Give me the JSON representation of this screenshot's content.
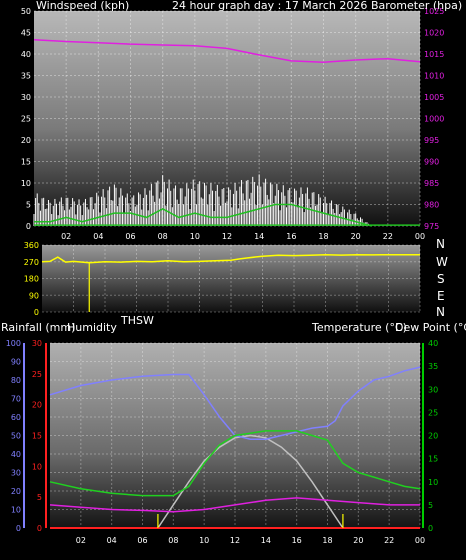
{
  "header": {
    "left_label": "Windspeed (kph)",
    "center_label": "24 hour graph day : 17 March 2026",
    "right_label": "Barometer (hpa)"
  },
  "labels": {
    "thsw": "THSW",
    "rainfall": "Rainfall (mm)",
    "humidity": "Humidity",
    "temperature": "Temperature (°C)",
    "dewpoint": "Dew Point (°C)"
  },
  "compass": [
    "N",
    "W",
    "S",
    "E",
    "N"
  ],
  "colors": {
    "background": "#000000",
    "barometer": "#e020e0",
    "wind_gust": "#ffffff",
    "wind_avg": "#20c020",
    "direction": "#ffff00",
    "humidity": "#8080ff",
    "temperature": "#20d020",
    "dewpoint": "#e020e0",
    "solar": "#c0c0c0",
    "rain_axis": "#ff2020",
    "temp_axis": "#00cc00"
  },
  "chart_data": [
    {
      "type": "line",
      "name_hint": "wind-barometer",
      "x_ticks": [
        "02",
        "04",
        "06",
        "08",
        "10",
        "12",
        "14",
        "16",
        "18",
        "20",
        "22",
        "00"
      ],
      "y_left_ticks": [
        "0",
        "5",
        "10",
        "15",
        "20",
        "25",
        "30",
        "35",
        "40",
        "45",
        "50"
      ],
      "y_right_ticks": [
        "975",
        "980",
        "985",
        "990",
        "995",
        "1000",
        "1005",
        "1010",
        "1015",
        "1020",
        "1025"
      ],
      "ylim_left": [
        0,
        50
      ],
      "ylim_right": [
        975,
        1025
      ],
      "xlim": [
        0,
        24
      ],
      "barometer": {
        "x": [
          0,
          2,
          4,
          6,
          8,
          10,
          12,
          14,
          16,
          18,
          20,
          22,
          24
        ],
        "values": [
          1018.3,
          1017.9,
          1017.6,
          1017.3,
          1017.1,
          1016.9,
          1016.3,
          1014.8,
          1013.4,
          1013.1,
          1013.6,
          1013.9,
          1013.2
        ]
      },
      "wind_gust": {
        "x": [
          0,
          1,
          2,
          3,
          4,
          5,
          6,
          7,
          8,
          9,
          10,
          11,
          12,
          13,
          14,
          15,
          16,
          17,
          18,
          19,
          20,
          21
        ],
        "values": [
          8,
          6,
          7,
          6,
          8,
          10,
          7,
          9,
          12,
          9,
          11,
          10,
          9,
          11,
          12,
          10,
          9,
          9,
          7,
          5,
          3,
          0
        ]
      },
      "wind_avg": {
        "x": [
          0,
          1,
          2,
          3,
          4,
          5,
          6,
          7,
          8,
          9,
          10,
          11,
          12,
          13,
          14,
          15,
          16,
          17,
          18,
          19,
          20,
          21
        ],
        "values": [
          1,
          1,
          2,
          1,
          2,
          3,
          3,
          2,
          4,
          2,
          3,
          2,
          2,
          3,
          4,
          5,
          5,
          4,
          3,
          2,
          1,
          0
        ]
      }
    },
    {
      "type": "scatter",
      "name_hint": "wind-direction",
      "y_ticks": [
        "0",
        "90",
        "180",
        "270",
        "360"
      ],
      "ylim": [
        0,
        360
      ],
      "xlim": [
        0,
        24
      ],
      "direction": {
        "x": [
          0,
          0.5,
          1,
          1.5,
          2,
          3,
          4,
          5,
          6,
          7,
          8,
          9,
          10,
          11,
          12,
          12.5,
          13,
          14,
          15,
          16,
          17,
          18,
          19,
          20,
          21,
          22,
          23,
          24
        ],
        "values": [
          270,
          272,
          295,
          268,
          272,
          265,
          270,
          268,
          272,
          270,
          275,
          270,
          272,
          275,
          278,
          285,
          290,
          300,
          305,
          303,
          305,
          308,
          306,
          308,
          307,
          308,
          308,
          308
        ]
      },
      "thsw_marker_x": 3
    },
    {
      "type": "line",
      "name_hint": "temperature-humidity",
      "x_ticks": [
        "02",
        "04",
        "06",
        "08",
        "10",
        "12",
        "14",
        "16",
        "18",
        "20",
        "22",
        "00"
      ],
      "humidity_ticks": [
        "0",
        "10",
        "20",
        "30",
        "40",
        "50",
        "60",
        "70",
        "80",
        "90",
        "100"
      ],
      "rain_ticks": [
        "0",
        "5",
        "10",
        "15",
        "20",
        "25",
        "30"
      ],
      "temp_ticks": [
        "0",
        "5",
        "10",
        "15",
        "20",
        "25",
        "30",
        "35",
        "40"
      ],
      "ylim_humidity": [
        0,
        100
      ],
      "ylim_rain": [
        0,
        30
      ],
      "ylim_temp": [
        0,
        40
      ],
      "xlim": [
        0,
        24
      ],
      "humidity": {
        "x": [
          0,
          2,
          4,
          6,
          8,
          9,
          10,
          11,
          12,
          13,
          14,
          15,
          16,
          17,
          18,
          18.5,
          19,
          20,
          21,
          22,
          23,
          24
        ],
        "values": [
          72,
          77,
          80,
          82,
          83,
          83,
          72,
          60,
          50,
          48,
          48,
          50,
          52,
          54,
          55,
          58,
          66,
          74,
          80,
          82,
          85,
          87
        ]
      },
      "temperature": {
        "x": [
          0,
          2,
          4,
          6,
          8,
          9,
          10,
          11,
          12,
          13,
          14,
          15,
          16,
          17,
          18,
          19,
          20,
          21,
          22,
          23,
          24
        ],
        "values": [
          10,
          8.5,
          7.5,
          7,
          7,
          9,
          14,
          18,
          20,
          20.5,
          21,
          21,
          21,
          20,
          19,
          14,
          12,
          11,
          10,
          9,
          8.5
        ]
      },
      "dewpoint": {
        "x": [
          0,
          2,
          4,
          6,
          8,
          10,
          12,
          14,
          16,
          18,
          20,
          22,
          24
        ],
        "values": [
          5,
          4.5,
          4,
          3.8,
          3.5,
          4,
          5,
          6,
          6.5,
          6,
          5.5,
          5,
          5
        ]
      },
      "solar": {
        "x": [
          7,
          8,
          9,
          10,
          11,
          12,
          13,
          14,
          15,
          16,
          17,
          18,
          19
        ],
        "values": [
          0,
          5,
          10,
          14.5,
          17.5,
          19.5,
          20,
          19.5,
          17.5,
          14.5,
          10,
          5,
          0
        ]
      },
      "rain": {
        "x": [
          0,
          24
        ],
        "values": [
          0,
          0
        ]
      },
      "sun_markers_x": [
        7,
        19
      ]
    }
  ]
}
